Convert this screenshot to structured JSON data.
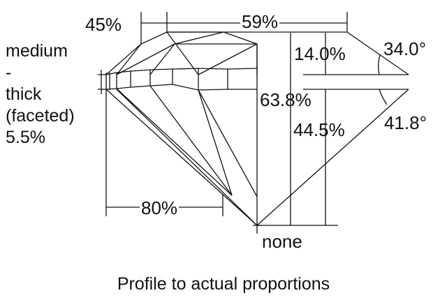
{
  "labels": {
    "crown_height_width": "45%",
    "table": "59%",
    "girdle": [
      "medium",
      "-",
      "thick",
      "(faceted)",
      "5.5%"
    ],
    "crown_height": "14.0%",
    "crown_angle": "34.0°",
    "total_depth": "63.8%",
    "pavilion_depth": "44.5%",
    "pavilion_angle": "41.8°",
    "lower_half": "80%",
    "culet": "none"
  },
  "caption": "Profile to actual proportions"
}
